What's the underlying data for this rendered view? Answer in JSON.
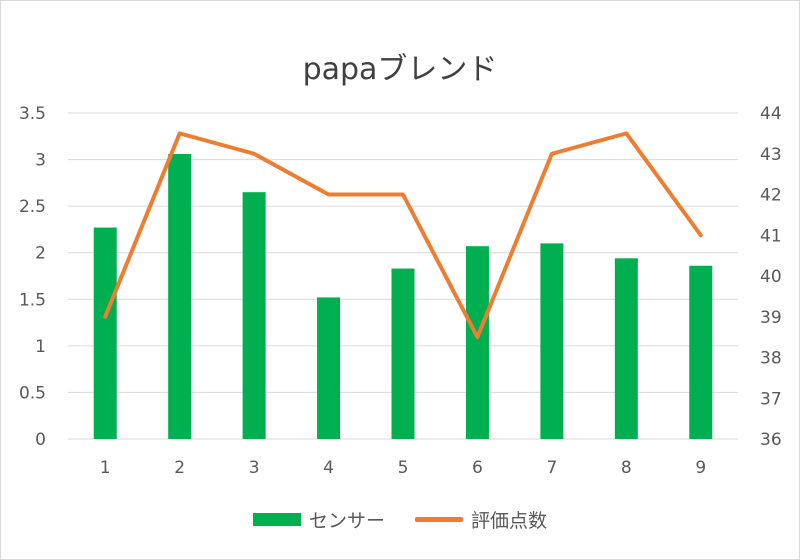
{
  "chart_data": {
    "type": "bar",
    "title": "papaブレンド",
    "categories": [
      "1",
      "2",
      "3",
      "4",
      "5",
      "6",
      "7",
      "8",
      "9"
    ],
    "series": [
      {
        "name": "センサー",
        "type": "bar",
        "axis": "left",
        "color": "#00b050",
        "values": [
          2.27,
          3.06,
          2.65,
          1.52,
          1.83,
          2.07,
          2.1,
          1.94,
          1.86
        ]
      },
      {
        "name": "評価点数",
        "type": "line",
        "axis": "right",
        "color": "#ed7d31",
        "values": [
          39,
          43.5,
          43,
          42,
          42,
          38.5,
          43,
          43.5,
          41
        ]
      }
    ],
    "ylim": [
      0,
      3.5
    ],
    "yticks": [
      "0",
      "0.5",
      "1",
      "1.5",
      "2",
      "2.5",
      "3",
      "3.5"
    ],
    "y2lim": [
      36,
      44
    ],
    "y2ticks": [
      "36",
      "37",
      "38",
      "39",
      "40",
      "41",
      "42",
      "43",
      "44"
    ],
    "grid": true,
    "legend": "bottom"
  }
}
